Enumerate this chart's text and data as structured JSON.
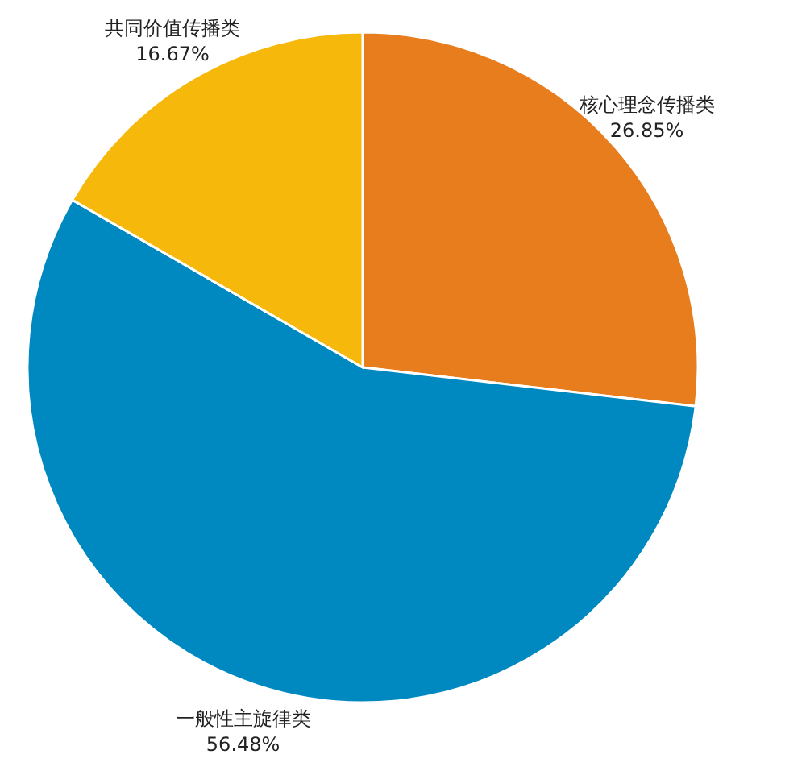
{
  "chart_data": {
    "type": "pie",
    "categories": [
      "核心理念传播类",
      "一般性主旋律类",
      "共同价值传播类"
    ],
    "values": [
      26.85,
      56.48,
      16.67
    ],
    "colors": [
      "#e87d1e",
      "#0088c0",
      "#f5b80b"
    ],
    "value_labels": [
      "26.85%",
      "56.48%",
      "16.67%"
    ]
  }
}
